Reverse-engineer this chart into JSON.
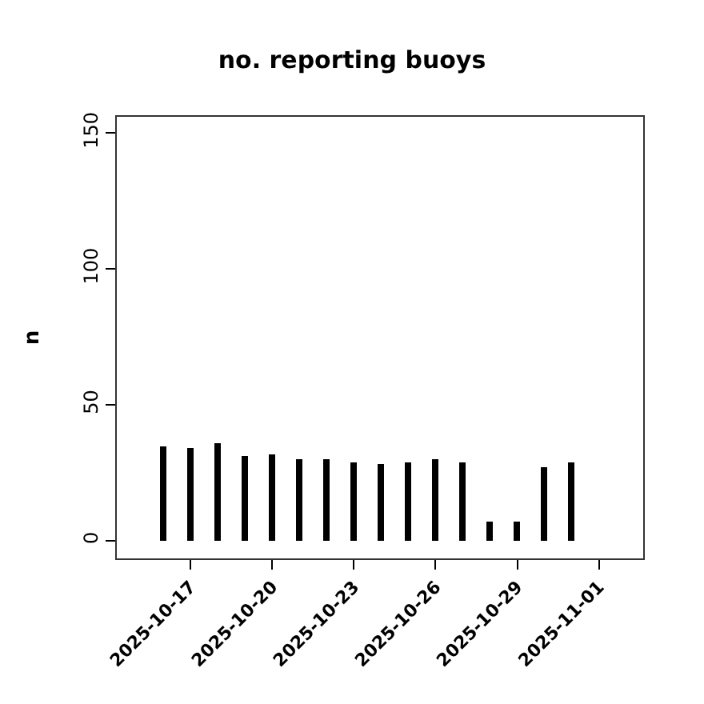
{
  "chart_data": {
    "type": "bar",
    "title": "no. reporting buoys",
    "ylabel": "n",
    "x": [
      "2025-10-16",
      "2025-10-17",
      "2025-10-18",
      "2025-10-19",
      "2025-10-20",
      "2025-10-21",
      "2025-10-22",
      "2025-10-23",
      "2025-10-24",
      "2025-10-25",
      "2025-10-26",
      "2025-10-27",
      "2025-10-28",
      "2025-10-29",
      "2025-10-30",
      "2025-10-31",
      "2025-11-01"
    ],
    "values": [
      35,
      34,
      36,
      31,
      32,
      30,
      30,
      29,
      28,
      29,
      30,
      29,
      7,
      7,
      27,
      29,
      0
    ],
    "color": "#000000",
    "xlim": [
      "2025-10-14T07:00",
      "2025-11-02T15:00"
    ],
    "xticks": [
      {
        "value": "2025-10-17",
        "label": "2025-10-17"
      },
      {
        "value": "2025-10-20",
        "label": "2025-10-20"
      },
      {
        "value": "2025-10-23",
        "label": "2025-10-23"
      },
      {
        "value": "2025-10-26",
        "label": "2025-10-26"
      },
      {
        "value": "2025-10-29",
        "label": "2025-10-29"
      },
      {
        "value": "2025-11-01",
        "label": "2025-11-01"
      }
    ],
    "ylim": [
      -6.5,
      156
    ],
    "yticks": [
      0,
      50,
      100,
      150
    ]
  }
}
